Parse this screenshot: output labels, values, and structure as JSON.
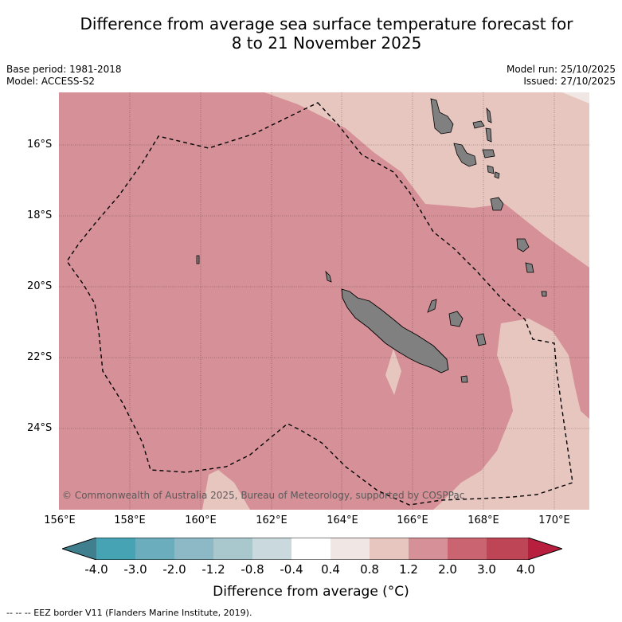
{
  "title_line1": "Difference from average sea surface temperature forecast for",
  "title_line2": "8 to 21 November 2025",
  "base_period": "Base period: 1981-2018",
  "model": "Model: ACCESS-S2",
  "model_run": "Model run: 25/10/2025",
  "issued": "Issued: 27/10/2025",
  "lat_labels": [
    "16°S",
    "18°S",
    "20°S",
    "22°S",
    "24°S"
  ],
  "lon_labels": [
    "156°E",
    "158°E",
    "160°E",
    "162°E",
    "164°E",
    "166°E",
    "168°E",
    "170°E"
  ],
  "copyright": "© Commonwealth of Australia 2025, Bureau of Meteorology, supported by COSPPac",
  "colorbar": {
    "labels": [
      "-4.0",
      "-3.0",
      "-2.0",
      "-1.2",
      "-0.8",
      "-0.4",
      "0.4",
      "0.8",
      "1.2",
      "2.0",
      "3.0",
      "4.0"
    ],
    "colors": [
      "#3f7f8e",
      "#45a3b3",
      "#6cadbd",
      "#8db8c5",
      "#a9c8cd",
      "#c9d9dd",
      "#ffffff",
      "#f0e6e3",
      "#e8c6c0",
      "#d69097",
      "#c96470",
      "#be4555",
      "#b81f3e"
    ],
    "title": "Difference from average (°C)"
  },
  "region_colors": {
    "warm_1_2_to_2_0": "#d69097",
    "warm_0_8_to_1_2": "#e8c6c0",
    "warm_0_4_to_0_8": "#f0e6e3",
    "land": "#808080"
  },
  "legend": "-- -- -- EEZ border V11 (Flanders Marine Institute, 2019)."
}
